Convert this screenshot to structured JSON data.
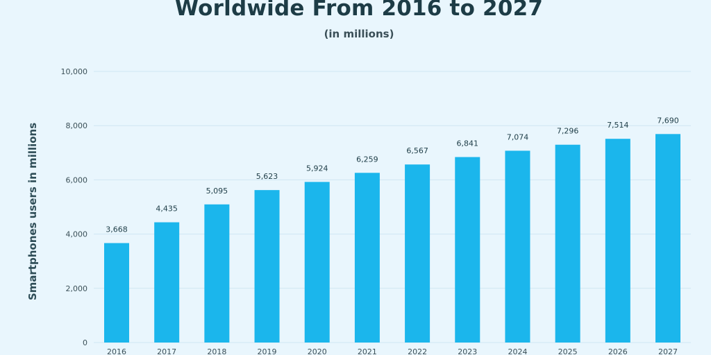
{
  "chart_data": {
    "type": "bar",
    "title": "Worldwide From 2016 to 2027",
    "subtitle": "(in millions)",
    "xlabel": "",
    "ylabel": "Smartphones users in millions",
    "categories": [
      "2016",
      "2017",
      "2018",
      "2019",
      "2020",
      "2021",
      "2022",
      "2023",
      "2024",
      "2025",
      "2026",
      "2027"
    ],
    "values": [
      3668,
      4435,
      5095,
      5623,
      5924,
      6259,
      6567,
      6841,
      7074,
      7296,
      7514,
      7690
    ],
    "value_labels": [
      "3,668",
      "4,435",
      "5,095",
      "5,623",
      "5,924",
      "6,259",
      "6,567",
      "6,841",
      "7,074",
      "7,296",
      "7,514",
      "7,690"
    ],
    "yticks": [
      0,
      2000,
      4000,
      6000,
      8000,
      10000
    ],
    "ytick_labels": [
      "0",
      "2,000",
      "4,000",
      "6,000",
      "8,000",
      "10,000"
    ],
    "ylim": [
      0,
      10000
    ],
    "grid": true,
    "legend": "none",
    "colors": {
      "bar": "#1bb6ec",
      "grid": "#cfe6f2",
      "background": "#e9f6fd"
    }
  }
}
